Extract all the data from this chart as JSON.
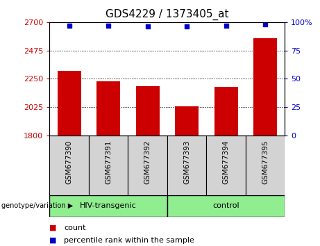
{
  "title": "GDS4229 / 1373405_at",
  "categories": [
    "GSM677390",
    "GSM677391",
    "GSM677392",
    "GSM677393",
    "GSM677394",
    "GSM677395"
  ],
  "bar_values": [
    2315,
    2230,
    2190,
    2030,
    2185,
    2570
  ],
  "bar_color": "#cc0000",
  "dot_values_pct": [
    97,
    97,
    96,
    96,
    97,
    98
  ],
  "dot_color": "#0000cc",
  "ylim_left": [
    1800,
    2700
  ],
  "ylim_right": [
    0,
    100
  ],
  "yticks_left": [
    1800,
    2025,
    2250,
    2475,
    2700
  ],
  "ytick_labels_left": [
    "1800",
    "2025",
    "2250",
    "2475",
    "2700"
  ],
  "yticks_right": [
    0,
    25,
    50,
    75,
    100
  ],
  "ytick_labels_right": [
    "0",
    "25",
    "50",
    "75",
    "100%"
  ],
  "hgrid_values": [
    2025,
    2250,
    2475
  ],
  "group_label_prefix": "genotype/variation",
  "group_configs": [
    {
      "start": 0,
      "end": 2,
      "label": "HIV-transgenic"
    },
    {
      "start": 3,
      "end": 5,
      "label": "control"
    }
  ],
  "legend_count_label": "count",
  "legend_pct_label": "percentile rank within the sample",
  "bar_width": 0.6,
  "plot_bg_color": "#ffffff",
  "tick_label_area_color": "#d3d3d3",
  "group_area_color": "#90ee90",
  "title_fontsize": 11,
  "tick_fontsize": 8,
  "legend_fontsize": 8
}
